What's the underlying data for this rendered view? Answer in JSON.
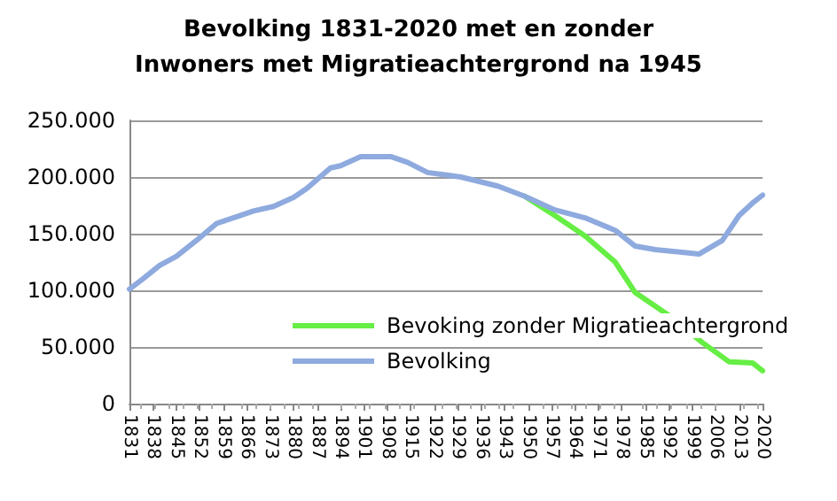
{
  "chart_data": {
    "type": "line",
    "title": "Bevolking 1831-2020 met en zonder\nInwoners met Migratieachtergrond na 1945",
    "xlim": [
      1831,
      2020
    ],
    "xticks": [
      1831,
      1838,
      1845,
      1852,
      1859,
      1866,
      1873,
      1880,
      1887,
      1894,
      1901,
      1908,
      1915,
      1922,
      1929,
      1936,
      1943,
      1950,
      1957,
      1964,
      1971,
      1978,
      1985,
      1992,
      1999,
      2006,
      2013,
      2020
    ],
    "ylim": [
      0,
      250000
    ],
    "yticks": [
      {
        "value": 0,
        "label": "0"
      },
      {
        "value": 50000,
        "label": "50.000"
      },
      {
        "value": 100000,
        "label": "100.000"
      },
      {
        "value": 150000,
        "label": "150.000"
      },
      {
        "value": 200000,
        "label": "200.000"
      },
      {
        "value": 250000,
        "label": "250.000"
      }
    ],
    "grid": "y",
    "legend": "right",
    "marker": "none",
    "line_style": "solid",
    "series": [
      {
        "name": "Bevoking zonder Migratieachtergrond",
        "color": "#66ee44",
        "x": [
          1949,
          1958,
          1967,
          1976,
          1982,
          1992,
          2002,
          2010,
          2017,
          2020
        ],
        "values": [
          183000,
          166000,
          148000,
          125000,
          98000,
          78000,
          54000,
          37000,
          36000,
          29000
        ]
      },
      {
        "name": "Bevolking",
        "color": "#8eaade",
        "x": [
          1831,
          1835,
          1840,
          1845,
          1851,
          1857,
          1863,
          1868,
          1874,
          1880,
          1884,
          1891,
          1894,
          1900,
          1909,
          1914,
          1920,
          1930,
          1941,
          1949,
          1958,
          1967,
          1976,
          1982,
          1988,
          2001,
          2008,
          2013,
          2017,
          2020
        ],
        "values": [
          101000,
          110000,
          122000,
          130000,
          144000,
          159000,
          165000,
          170000,
          174000,
          182000,
          190000,
          208000,
          210000,
          218000,
          218000,
          213000,
          204000,
          200000,
          192000,
          183000,
          171000,
          164000,
          153000,
          139000,
          136000,
          132000,
          144000,
          166000,
          177000,
          184000
        ]
      }
    ]
  }
}
